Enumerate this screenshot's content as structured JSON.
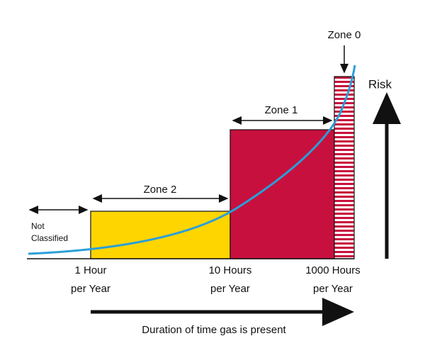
{
  "zone_labels": {
    "zone0": "Zone 0",
    "zone1": "Zone 1",
    "zone2": "Zone 2",
    "not_classified": [
      "Not",
      "Classified"
    ]
  },
  "risk_label": "Risk",
  "x_labels": [
    [
      "1 Hour",
      "per Year"
    ],
    [
      "10 Hours",
      "per Year"
    ],
    [
      "1000 Hours",
      "per Year"
    ]
  ],
  "axis_label": "Duration of time gas is present"
}
